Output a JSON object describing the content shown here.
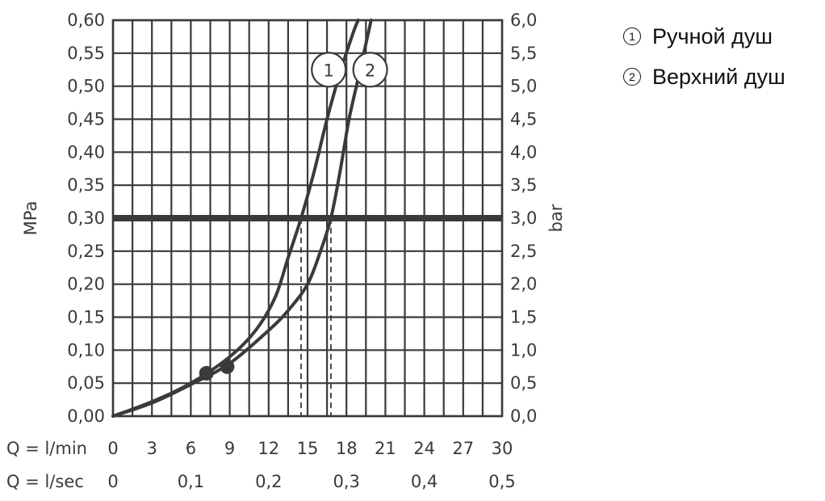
{
  "chart_data": {
    "type": "line",
    "title": "",
    "y_left": {
      "label": "MPa",
      "range": [
        0,
        0.6
      ],
      "ticks": [
        "0,00",
        "0,05",
        "0,10",
        "0,15",
        "0,20",
        "0,25",
        "0,30",
        "0,35",
        "0,40",
        "0,45",
        "0,50",
        "0,55",
        "0,60"
      ]
    },
    "y_right": {
      "label": "bar",
      "ticks": [
        "0,0",
        "0,5",
        "1,0",
        "1,5",
        "2,0",
        "2,5",
        "3,0",
        "3,5",
        "4,0",
        "4,5",
        "5,0",
        "5,5",
        "6,0"
      ]
    },
    "x_lmin": {
      "label": "Q = l/min",
      "range": [
        0,
        30
      ],
      "ticks": [
        "0",
        "3",
        "6",
        "9",
        "12",
        "15",
        "18",
        "21",
        "24",
        "27",
        "30"
      ]
    },
    "x_lsec": {
      "label": "Q = l/sec",
      "ticks": [
        {
          "at": 0,
          "text": "0"
        },
        {
          "at": 6,
          "text": "0,1"
        },
        {
          "at": 12,
          "text": "0,2"
        },
        {
          "at": 18,
          "text": "0,3"
        },
        {
          "at": 24,
          "text": "0,4"
        },
        {
          "at": 30,
          "text": "0,5"
        }
      ]
    },
    "grid": true,
    "reference_line": {
      "y": 0.3
    },
    "series": [
      {
        "marker": "1",
        "points": [
          [
            0,
            0
          ],
          [
            3,
            0.022
          ],
          [
            6,
            0.05
          ],
          [
            9,
            0.09
          ],
          [
            11,
            0.13
          ],
          [
            12.5,
            0.18
          ],
          [
            13.5,
            0.24
          ],
          [
            14.5,
            0.3
          ],
          [
            15.5,
            0.37
          ],
          [
            16.5,
            0.45
          ],
          [
            17.5,
            0.52
          ],
          [
            18.5,
            0.58
          ],
          [
            18.9,
            0.6
          ]
        ],
        "operating_point": [
          7.2,
          0.065
        ],
        "dropline_x": 14.5
      },
      {
        "marker": "2",
        "points": [
          [
            0,
            0
          ],
          [
            3,
            0.02
          ],
          [
            6,
            0.048
          ],
          [
            9,
            0.08
          ],
          [
            12,
            0.13
          ],
          [
            13.5,
            0.16
          ],
          [
            15,
            0.2
          ],
          [
            16,
            0.25
          ],
          [
            16.8,
            0.3
          ],
          [
            17.5,
            0.37
          ],
          [
            18.2,
            0.45
          ],
          [
            19,
            0.52
          ],
          [
            19.9,
            0.6
          ]
        ],
        "operating_point": [
          8.8,
          0.075
        ],
        "dropline_x": 16.8
      }
    ]
  },
  "legend": {
    "items": [
      {
        "marker": "1",
        "symbol": "①",
        "label": "Ручной душ"
      },
      {
        "marker": "2",
        "symbol": "②",
        "label": "Верхний душ"
      }
    ]
  }
}
